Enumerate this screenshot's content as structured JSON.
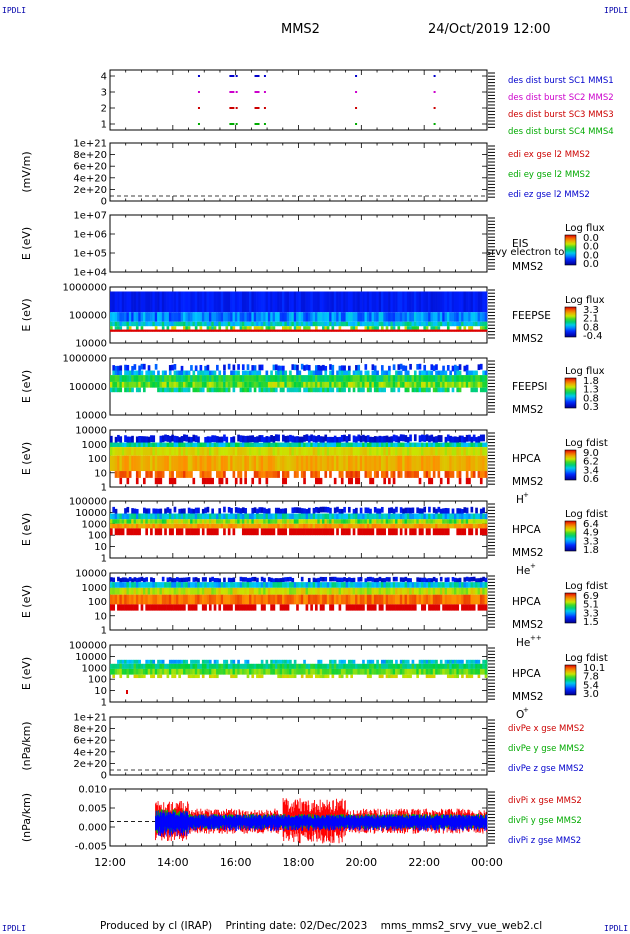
{
  "corner_label": "IPDLI",
  "title": "MMS2",
  "datetime": "24/Oct/2019 12:00",
  "footer": {
    "produced_by": "Produced by cl (IRAP)",
    "printing_date": "Printing date: 02/Dec/2023",
    "file": "mms_mms2_srvy_vue_web2.cl"
  },
  "chart_data": {
    "type": "heatmap",
    "x_axis": {
      "ticks": [
        "12:00",
        "14:00",
        "16:00",
        "18:00",
        "20:00",
        "22:00",
        "00:00"
      ],
      "range_hours": [
        12,
        24
      ]
    },
    "panels": [
      {
        "id": "burst",
        "yticks": [
          "4",
          "3",
          "2",
          "1"
        ],
        "ylabel": "",
        "legend": [
          {
            "text": "des dist burst SC1 MMS1",
            "color": "#0000cc"
          },
          {
            "text": "des dist burst SC2 MMS2",
            "color": "#cc00cc"
          },
          {
            "text": "des dist burst SC3 MMS3",
            "color": "#cc0000"
          },
          {
            "text": "des dist burst SC4 MMS4",
            "color": "#00aa00"
          }
        ]
      },
      {
        "id": "edi",
        "yticks": [
          "1e+21",
          "8e+20",
          "6e+20",
          "4e+20",
          "2e+20",
          "0"
        ],
        "ylabel": "(mV/m)",
        "legend": [
          {
            "text": "edi ex gse l2 MMS2",
            "color": "#cc0000"
          },
          {
            "text": "edi ey gse l2 MMS2",
            "color": "#00aa00"
          },
          {
            "text": "edi ez gse l2 MMS2",
            "color": "#0000cc"
          }
        ]
      },
      {
        "id": "eis",
        "yticks": [
          "1e+07",
          "1e+06",
          "1e+05",
          "1e+04"
        ],
        "ylabel": "E (eV)",
        "instrument": "EIS",
        "subtitle": "srvy electron to",
        "spacecraft": "MMS2",
        "species": "",
        "cbar_title": "Log flux",
        "cbar_ticks": [
          "0.0",
          "0.0",
          "0.0",
          "0.0"
        ]
      },
      {
        "id": "feepse",
        "yticks": [
          "1000000",
          "100000",
          "10000"
        ],
        "ylabel": "E (eV)",
        "instrument": "FEEPSE",
        "spacecraft": "MMS2",
        "species": "",
        "cbar_title": "Log flux",
        "cbar_ticks": [
          "3.3",
          "2.1",
          "0.8",
          "-0.4"
        ]
      },
      {
        "id": "feepsi",
        "yticks": [
          "1000000",
          "100000",
          "10000"
        ],
        "ylabel": "E (eV)",
        "instrument": "FEEPSI",
        "spacecraft": "MMS2",
        "species": "",
        "cbar_title": "Log flux",
        "cbar_ticks": [
          "1.8",
          "1.3",
          "0.8",
          "0.3"
        ]
      },
      {
        "id": "hpca_h",
        "yticks": [
          "10000",
          "1000",
          "100",
          "10",
          "1"
        ],
        "ylabel": "E (eV)",
        "instrument": "HPCA",
        "spacecraft": "MMS2",
        "species": "H",
        "species_sup": "+",
        "cbar_title": "Log fdist",
        "cbar_ticks": [
          "9.0",
          "6.2",
          "3.4",
          "0.6"
        ]
      },
      {
        "id": "hpca_he",
        "yticks": [
          "100000",
          "10000",
          "1000",
          "100",
          "10",
          "1"
        ],
        "ylabel": "E (eV)",
        "instrument": "HPCA",
        "spacecraft": "MMS2",
        "species": "He",
        "species_sup": "+",
        "cbar_title": "Log fdist",
        "cbar_ticks": [
          "6.4",
          "4.9",
          "3.3",
          "1.8"
        ]
      },
      {
        "id": "hpca_hepp",
        "yticks": [
          "10000",
          "1000",
          "100",
          "10",
          "1"
        ],
        "ylabel": "E (eV)",
        "instrument": "HPCA",
        "spacecraft": "MMS2",
        "species": "He",
        "species_sup": "++",
        "cbar_title": "Log fdist",
        "cbar_ticks": [
          "6.9",
          "5.1",
          "3.3",
          "1.5"
        ]
      },
      {
        "id": "hpca_o",
        "yticks": [
          "100000",
          "10000",
          "1000",
          "100",
          "10",
          "1"
        ],
        "ylabel": "E (eV)",
        "instrument": "HPCA",
        "spacecraft": "MMS2",
        "species": "O",
        "species_sup": "+",
        "cbar_title": "Log fdist",
        "cbar_ticks": [
          "10.1",
          "7.8",
          "5.4",
          "3.0"
        ]
      },
      {
        "id": "divpe",
        "yticks": [
          "1e+21",
          "8e+20",
          "6e+20",
          "4e+20",
          "2e+20",
          "0"
        ],
        "ylabel": "(nPa/km)",
        "legend": [
          {
            "text": "divPe x gse MMS2",
            "color": "#cc0000"
          },
          {
            "text": "divPe y gse MMS2",
            "color": "#00aa00"
          },
          {
            "text": "divPe z gse MMS2",
            "color": "#0000cc"
          }
        ]
      },
      {
        "id": "divpi",
        "yticks": [
          "0.010",
          "0.005",
          "0.000",
          "-0.005"
        ],
        "ylabel": "(nPa/km)",
        "legend": [
          {
            "text": "divPi x gse MMS2",
            "color": "#cc0000"
          },
          {
            "text": "divPi y gse MMS2",
            "color": "#00aa00"
          },
          {
            "text": "divPi z gse MMS2",
            "color": "#0000cc"
          }
        ]
      }
    ]
  }
}
